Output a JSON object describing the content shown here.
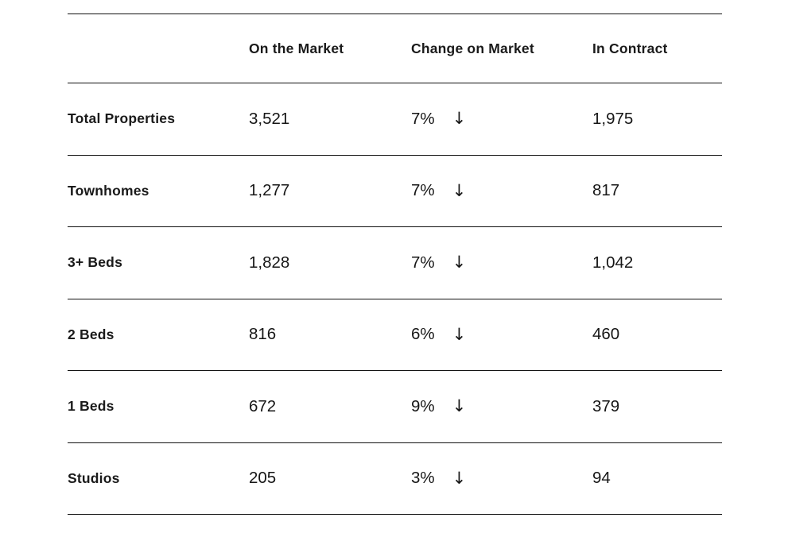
{
  "icons": {
    "down_arrow": "↓"
  },
  "table": {
    "headers": [
      "On the Market",
      "Change on Market",
      "In Contract"
    ],
    "rows": [
      {
        "label": "Total Properties",
        "on_market": "3,521",
        "change": "7%",
        "direction": "down",
        "in_contract": "1,975"
      },
      {
        "label": "Townhomes",
        "on_market": "1,277",
        "change": "7%",
        "direction": "down",
        "in_contract": "817"
      },
      {
        "label": "3+ Beds",
        "on_market": "1,828",
        "change": "7%",
        "direction": "down",
        "in_contract": "1,042"
      },
      {
        "label": "2 Beds",
        "on_market": "816",
        "change": "6%",
        "direction": "down",
        "in_contract": "460"
      },
      {
        "label": "1 Beds",
        "on_market": "672",
        "change": "9%",
        "direction": "down",
        "in_contract": "379"
      },
      {
        "label": "Studios",
        "on_market": "205",
        "change": "3%",
        "direction": "down",
        "in_contract": "94"
      }
    ]
  },
  "chart_data": {
    "type": "table",
    "title": "",
    "columns": [
      "",
      "On the Market",
      "Change on Market",
      "In Contract"
    ],
    "rows": [
      [
        "Total Properties",
        "3,521",
        "7% down",
        "1,975"
      ],
      [
        "Townhomes",
        "1,277",
        "7% down",
        "817"
      ],
      [
        "3+ Beds",
        "1,828",
        "7% down",
        "1,042"
      ],
      [
        "2 Beds",
        "816",
        "6% down",
        "460"
      ],
      [
        "1 Beds",
        "672",
        "9% down",
        "379"
      ],
      [
        "Studios",
        "205",
        "3% down",
        "94"
      ]
    ],
    "layout_hints": {
      "grid": "horizontal-rules-only",
      "text_color": "#1a1a1a",
      "rule_color": "#111111",
      "background": "#ffffff"
    }
  },
  "colors": {
    "text": "#1a1a1a",
    "rule": "#111111",
    "background": "#ffffff"
  }
}
